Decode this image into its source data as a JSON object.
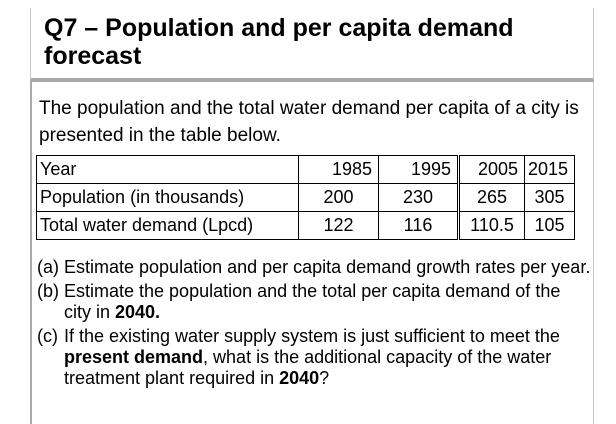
{
  "title": "Q7 – Population and per capita demand forecast",
  "intro": "The population and the total water demand per capita of a city is presented in the table below.",
  "table": {
    "header": {
      "label": "Year",
      "values": [
        "1985",
        "1995",
        "2005",
        "2015"
      ]
    },
    "rows": [
      {
        "label": "Population (in thousands)",
        "values": [
          "200",
          "230",
          "265",
          "305"
        ]
      },
      {
        "label": "Total water demand (Lpcd)",
        "values": [
          "122",
          "116",
          "110.5",
          "105"
        ]
      }
    ]
  },
  "questions": [
    {
      "marker": "(a)",
      "text": "Estimate population and per capita demand growth rates per year."
    },
    {
      "marker": "(b)",
      "text_before": "Estimate the population and the total per capita demand of the city in ",
      "bold": "2040.",
      "text_after": ""
    },
    {
      "marker": "(c)",
      "text_before": "If the existing water supply system is just sufficient to meet the ",
      "bold": "present demand",
      "text_middle": ", what is the additional capacity of the water treatment plant required in ",
      "bold2": "2040",
      "text_after": "?"
    }
  ]
}
